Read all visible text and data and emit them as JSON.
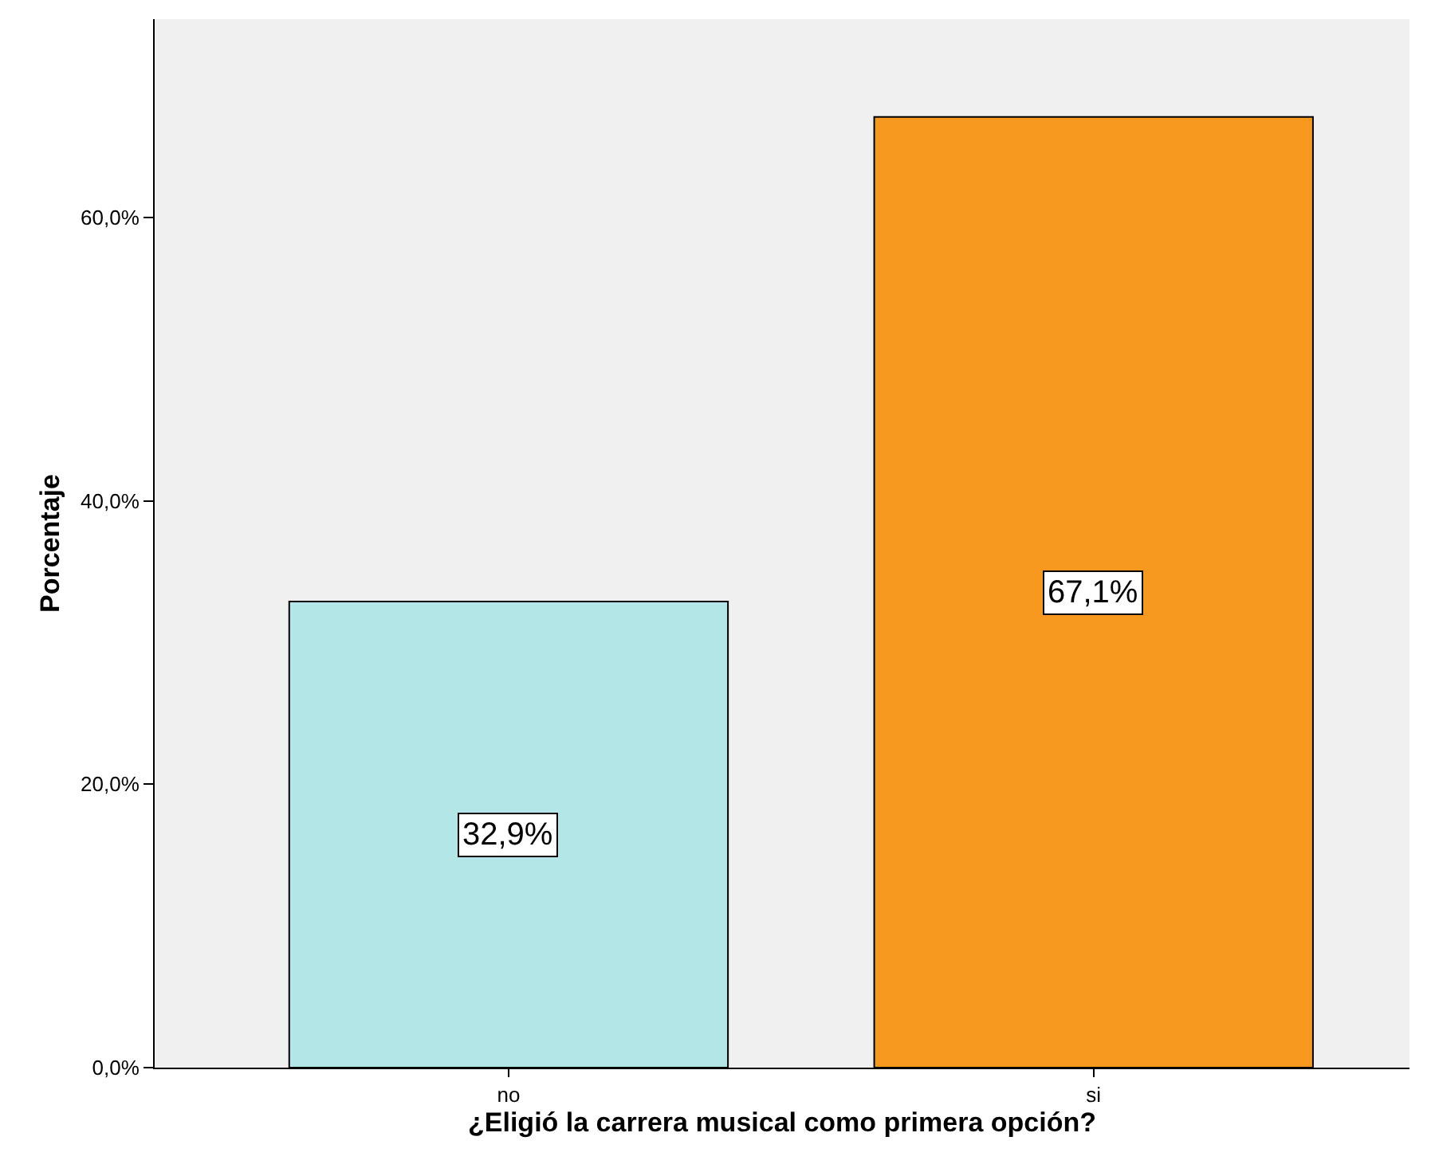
{
  "chart_data": {
    "type": "bar",
    "xlabel": "¿Eligió la carrera musical como primera opción?",
    "ylabel": "Porcentaje",
    "categories": [
      "no",
      "si"
    ],
    "values": [
      32.9,
      67.1
    ],
    "colors": [
      "#b3e6e6",
      "#f7991f"
    ],
    "value_labels": [
      "32,9%",
      "67,1%"
    ],
    "ylim": [
      0,
      74
    ],
    "yticks": [
      {
        "value": 0,
        "label": "0,0%"
      },
      {
        "value": 20,
        "label": "20,0%"
      },
      {
        "value": 40,
        "label": "40,0%"
      },
      {
        "value": 60,
        "label": "60,0%"
      }
    ],
    "grid": false
  }
}
